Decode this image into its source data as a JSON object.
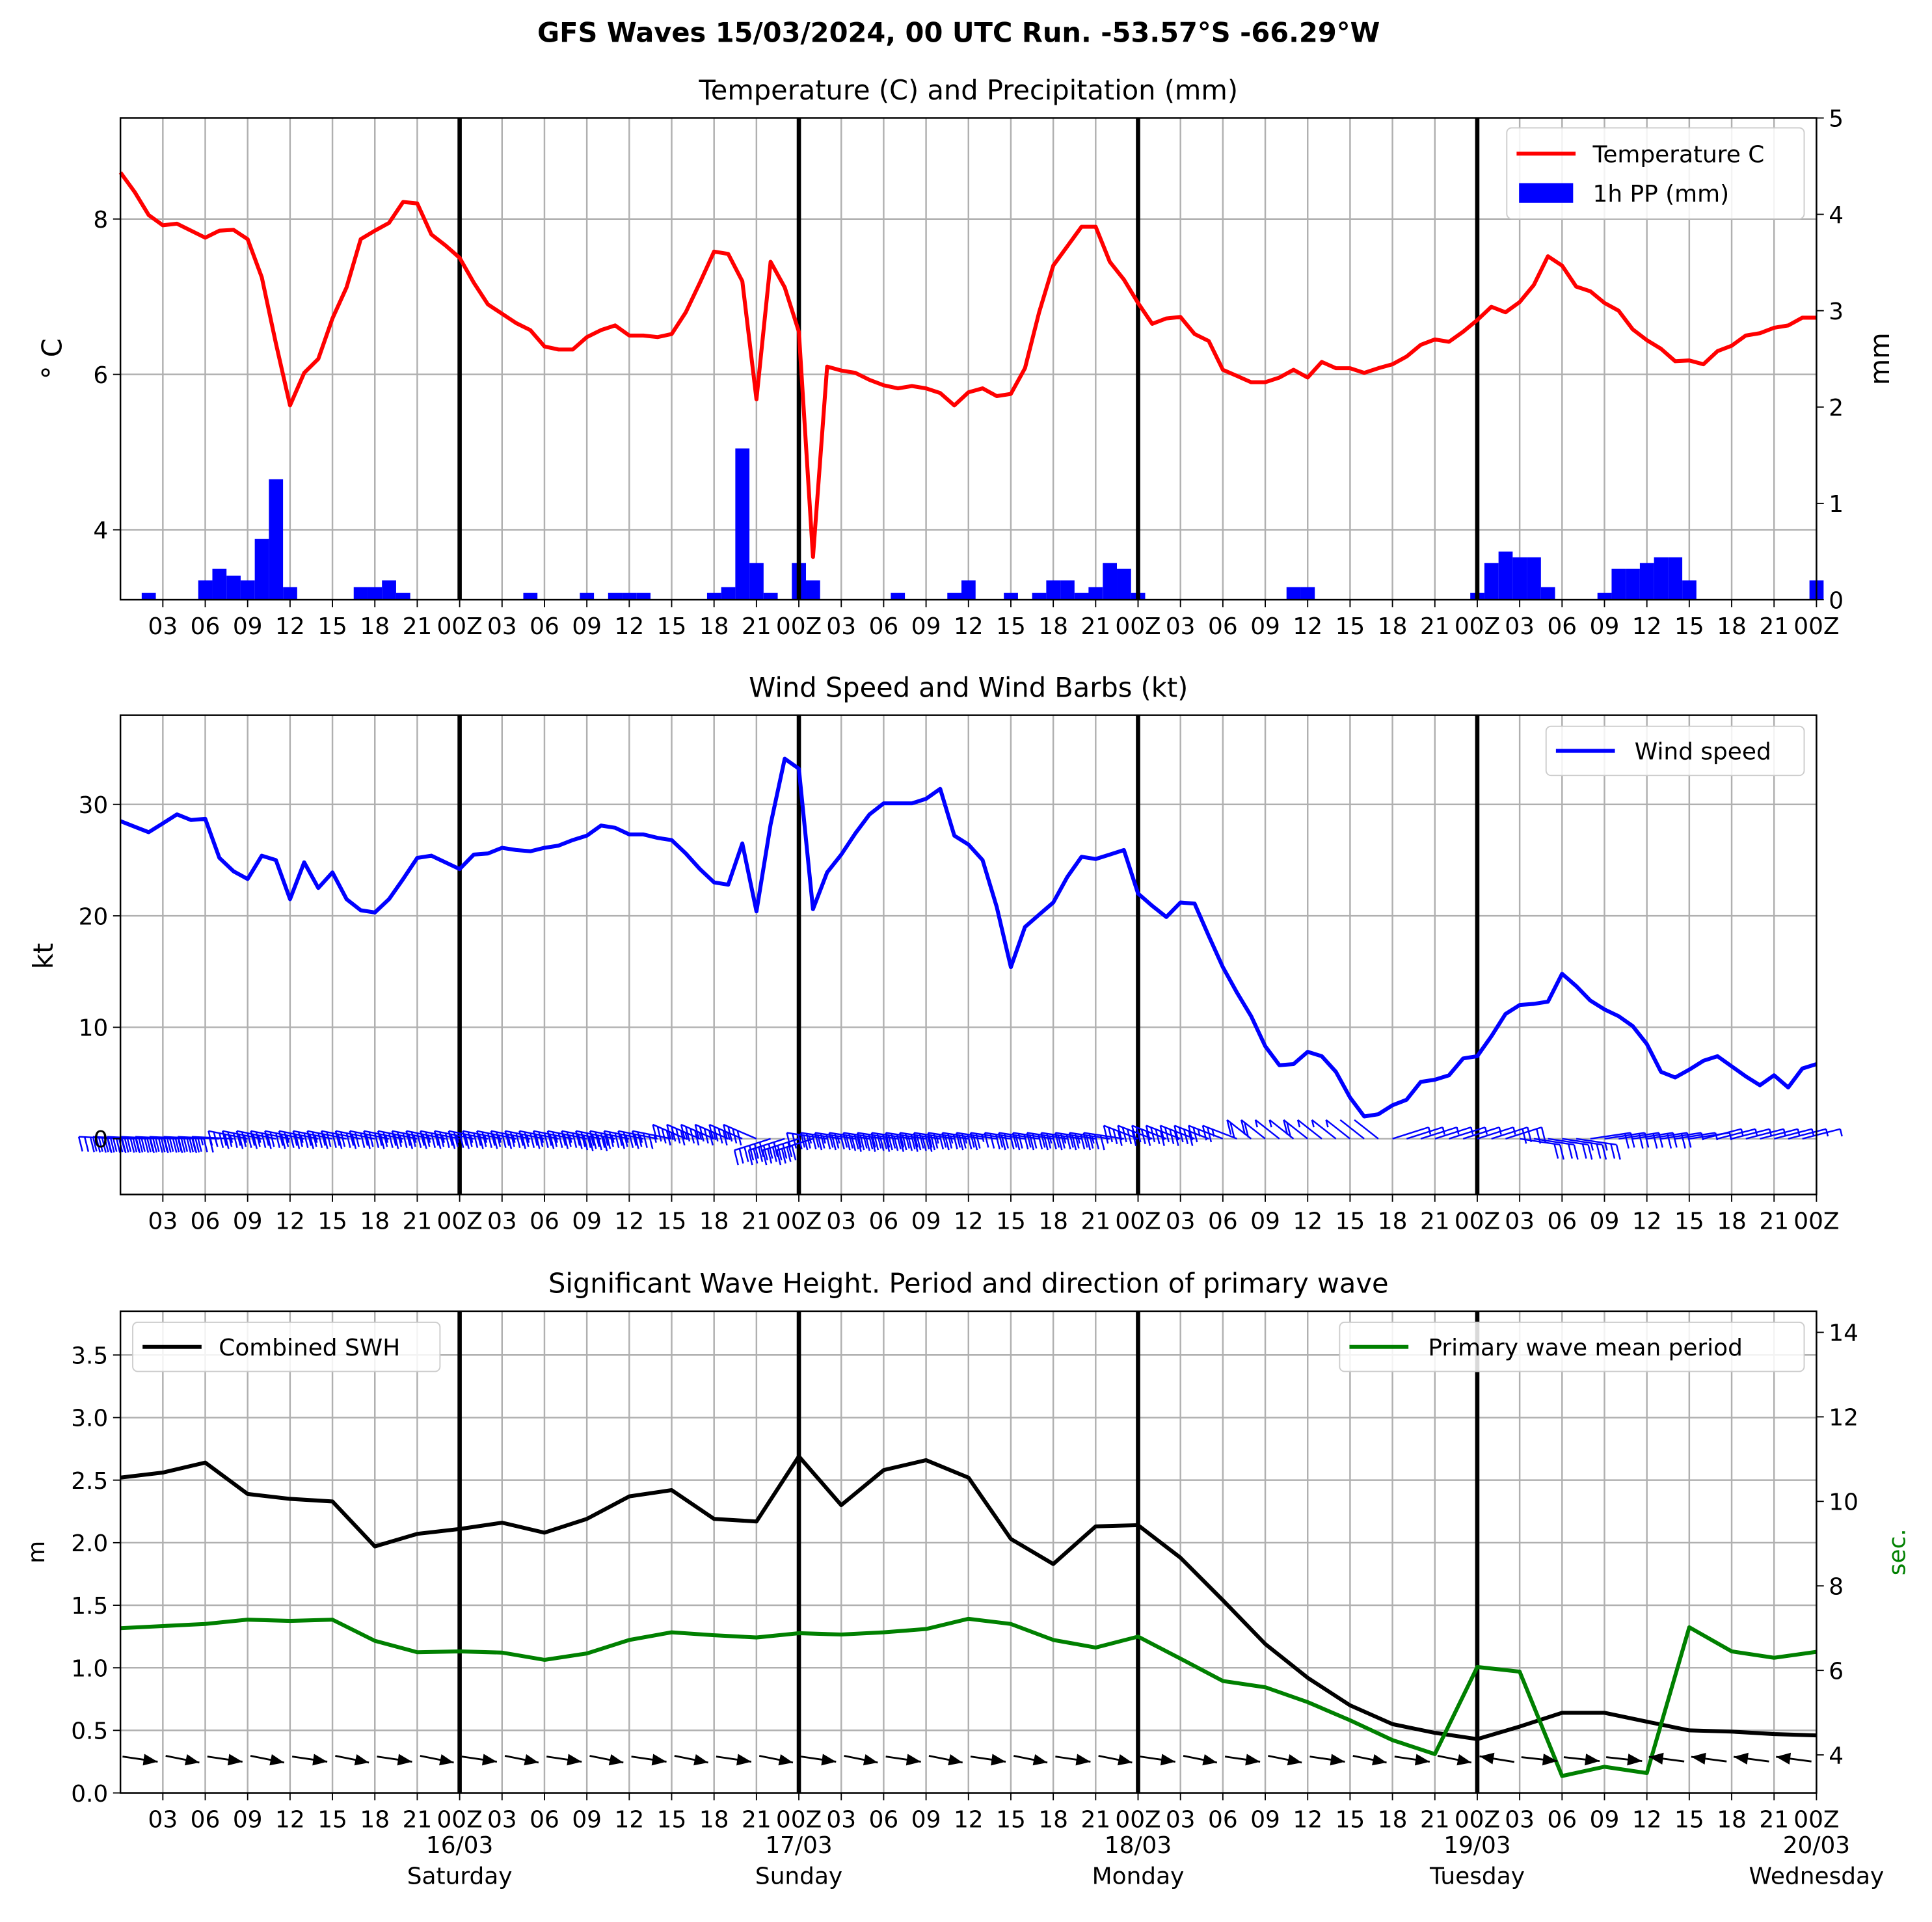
{
  "page_title": "GFS Waves 15/03/2024, 00 UTC Run. -53.57°S -66.29°W",
  "x_ticks": [
    "03",
    "06",
    "09",
    "12",
    "15",
    "18",
    "21",
    "00Z",
    "03",
    "06",
    "09",
    "12",
    "15",
    "18",
    "21",
    "00Z",
    "03",
    "06",
    "09",
    "12",
    "15",
    "18",
    "21",
    "00Z",
    "03",
    "06",
    "09",
    "12",
    "15",
    "18",
    "21",
    "00Z",
    "03",
    "06",
    "09",
    "12",
    "15",
    "18",
    "21",
    "00Z"
  ],
  "day_labels": [
    {
      "date": "16/03",
      "day": "Saturday"
    },
    {
      "date": "17/03",
      "day": "Sunday"
    },
    {
      "date": "18/03",
      "day": "Monday"
    },
    {
      "date": "19/03",
      "day": "Tuesday"
    },
    {
      "date": "20/03",
      "day": "Wednesday"
    }
  ],
  "colors": {
    "temperature": "#ff0000",
    "precip": "#0000ff",
    "wind": "#0000ff",
    "swh": "#000000",
    "period": "#008000",
    "grid": "#b0b0b0"
  },
  "chart_data": [
    {
      "type": "line",
      "title": "Temperature (C) and Precipitation (mm)",
      "ylabel": "$^\\circ$C",
      "y2label": "mm",
      "x_unit": "hours since 15/03/2024 00 UTC",
      "xlim": [
        0,
        120
      ],
      "ylim": [
        3.1,
        9.3
      ],
      "y_ticks": [
        4,
        6,
        8
      ],
      "y2lim": [
        0,
        5
      ],
      "y2_ticks": [
        0,
        1,
        2,
        3,
        4,
        5
      ],
      "legend": "top-right",
      "series": [
        {
          "name": "Temperature C",
          "axis": "left",
          "x": [
            0,
            1,
            2,
            3,
            4,
            5,
            6,
            7,
            8,
            9,
            10,
            11,
            12,
            13,
            14,
            15,
            16,
            17,
            18,
            19,
            20,
            21,
            22,
            23,
            24,
            25,
            26,
            27,
            28,
            29,
            30,
            31,
            32,
            33,
            34,
            35,
            36,
            37,
            38,
            39,
            40,
            41,
            42,
            43,
            44,
            45,
            46,
            47,
            48,
            49,
            50,
            51,
            52,
            53,
            54,
            55,
            56,
            57,
            58,
            59,
            60,
            61,
            62,
            63,
            64,
            65,
            66,
            67,
            68,
            69,
            70,
            71,
            72,
            73,
            74,
            75,
            76,
            77,
            78,
            79,
            80,
            81,
            82,
            83,
            84,
            85,
            86,
            87,
            88,
            89,
            90,
            91,
            92,
            93,
            94,
            95,
            96,
            97,
            98,
            99,
            100,
            101,
            102,
            103,
            104,
            105,
            106,
            107,
            108,
            109,
            110,
            111,
            112,
            113,
            114,
            115,
            116,
            117,
            118,
            119,
            120
          ],
          "y": [
            8.6,
            8.35,
            8.05,
            7.92,
            7.94,
            7.85,
            7.76,
            7.85,
            7.86,
            7.74,
            7.25,
            6.4,
            5.6,
            6.02,
            6.2,
            6.72,
            7.12,
            7.74,
            7.85,
            7.95,
            8.22,
            8.2,
            7.8,
            7.66,
            7.5,
            7.18,
            6.9,
            6.78,
            6.66,
            6.57,
            6.36,
            6.32,
            6.32,
            6.48,
            6.57,
            6.63,
            6.5,
            6.5,
            6.48,
            6.52,
            6.8,
            7.18,
            7.58,
            7.55,
            7.2,
            5.68,
            7.45,
            7.12,
            6.55,
            3.65,
            6.1,
            6.05,
            6.02,
            5.93,
            5.86,
            5.82,
            5.85,
            5.82,
            5.76,
            5.6,
            5.77,
            5.82,
            5.72,
            5.75,
            6.08,
            6.8,
            7.4,
            7.65,
            7.9,
            7.9,
            7.45,
            7.22,
            6.92,
            6.65,
            6.72,
            6.74,
            6.52,
            6.43,
            6.06,
            5.98,
            5.9,
            5.9,
            5.96,
            6.06,
            5.96,
            6.16,
            6.08,
            6.08,
            6.02,
            6.08,
            6.13,
            6.23,
            6.38,
            6.45,
            6.42,
            6.55,
            6.7,
            6.87,
            6.8,
            6.93,
            7.15,
            7.52,
            7.4,
            7.13,
            7.07,
            6.92,
            6.82,
            6.58,
            6.44,
            6.33,
            6.17,
            6.18,
            6.13,
            6.3,
            6.37,
            6.5,
            6.53,
            6.6,
            6.63,
            6.73,
            6.73
          ]
        },
        {
          "name": "1h PP (mm)",
          "axis": "right",
          "kind": "bar",
          "x": [
            2,
            6,
            7,
            8,
            9,
            10,
            11,
            12,
            17,
            18,
            19,
            20,
            29,
            33,
            35,
            36,
            37,
            42,
            43,
            44,
            45,
            46,
            48,
            49,
            55,
            59,
            60,
            63,
            65,
            66,
            67,
            68,
            69,
            70,
            71,
            72,
            83,
            84,
            96,
            97,
            98,
            99,
            100,
            101,
            105,
            106,
            107,
            108,
            109,
            110,
            111,
            112,
            120
          ],
          "y": [
            0.07,
            0.2,
            0.32,
            0.25,
            0.2,
            0.63,
            1.25,
            0.13,
            0.13,
            0.13,
            0.2,
            0.07,
            0.07,
            0.07,
            0.07,
            0.07,
            0.07,
            0.07,
            0.13,
            1.57,
            0.38,
            0.07,
            0.38,
            0.2,
            0.07,
            0.07,
            0.2,
            0.07,
            0.07,
            0.2,
            0.2,
            0.07,
            0.13,
            0.38,
            0.32,
            0.07,
            0.13,
            0.13,
            0.07,
            0.38,
            0.5,
            0.44,
            0.44,
            0.13,
            0.07,
            0.32,
            0.32,
            0.38,
            0.44,
            0.44,
            0.2,
            0.0,
            0.2
          ]
        }
      ]
    },
    {
      "type": "line",
      "title": "Wind Speed and Wind Barbs (kt)",
      "ylabel": "kt",
      "x_unit": "hours since 15/03/2024 00 UTC",
      "xlim": [
        0,
        120
      ],
      "ylim": [
        -5,
        38
      ],
      "y_ticks": [
        0,
        10,
        20,
        30
      ],
      "legend": "top-right",
      "series": [
        {
          "name": "Wind speed",
          "x": [
            0,
            2,
            3,
            4,
            5,
            6,
            7,
            8,
            9,
            10,
            11,
            12,
            13,
            14,
            15,
            16,
            17,
            18,
            19,
            20,
            21,
            22,
            24,
            25,
            26,
            27,
            28,
            29,
            30,
            31,
            32,
            33,
            34,
            35,
            36,
            37,
            38,
            39,
            40,
            41,
            42,
            43,
            44,
            45,
            46,
            47,
            48,
            49,
            50,
            51,
            52,
            53,
            54,
            55,
            56,
            57,
            58,
            59,
            60,
            61,
            62,
            63,
            64,
            65,
            66,
            67,
            68,
            69,
            70,
            71,
            72,
            73,
            74,
            75,
            76,
            77,
            78,
            79,
            80,
            81,
            82,
            83,
            84,
            85,
            86,
            87,
            88,
            89,
            90,
            91,
            92,
            93,
            94,
            95,
            96,
            97,
            98,
            99,
            100,
            101,
            102,
            103,
            104,
            105,
            106,
            107,
            108,
            109,
            110,
            111,
            112,
            113,
            114,
            115,
            116,
            117,
            118,
            119,
            120
          ],
          "y": [
            28.5,
            27.5,
            28.3,
            29.1,
            28.6,
            28.7,
            25.2,
            24.0,
            23.3,
            25.4,
            25.0,
            21.5,
            24.8,
            22.5,
            23.9,
            21.5,
            20.5,
            20.3,
            21.5,
            23.3,
            25.2,
            25.4,
            24.2,
            25.5,
            25.6,
            26.1,
            25.9,
            25.8,
            26.1,
            26.3,
            26.8,
            27.2,
            28.1,
            27.9,
            27.3,
            27.3,
            27.0,
            26.8,
            25.6,
            24.2,
            23.0,
            22.8,
            26.5,
            20.4,
            28.2,
            34.1,
            33.2,
            20.6,
            23.9,
            25.5,
            27.4,
            29.1,
            30.1,
            30.1,
            30.1,
            30.5,
            31.4,
            27.2,
            26.4,
            25.0,
            20.8,
            15.4,
            19.0,
            20.1,
            21.2,
            23.5,
            25.3,
            25.1,
            25.5,
            25.9,
            22.0,
            20.9,
            19.9,
            21.2,
            21.1,
            18.2,
            15.4,
            13.1,
            11.0,
            8.3,
            6.6,
            6.7,
            7.8,
            7.4,
            6.0,
            3.7,
            2.0,
            2.2,
            3.0,
            3.5,
            5.1,
            5.3,
            5.7,
            7.2,
            7.4,
            9.2,
            11.2,
            12.0,
            12.1,
            12.3,
            14.8,
            13.7,
            12.4,
            11.6,
            11.0,
            10.1,
            8.5,
            6.0,
            5.5,
            6.2,
            7.0,
            7.4,
            6.5,
            5.6,
            4.8,
            5.7,
            4.6,
            6.3,
            6.7
          ]
        }
      ],
      "barb_directions": {
        "0-24": "W",
        "24-48": "W",
        "48-72": "WSW",
        "72-96": "SW to NE",
        "96-120": "NW to NE"
      }
    },
    {
      "type": "line",
      "title": "Significant Wave Height. Period and direction of primary wave",
      "ylabel": "m",
      "y2label": "sec.",
      "x_unit": "hours since 15/03/2024 00 UTC",
      "xlim": [
        0,
        120
      ],
      "ylim": [
        0,
        3.85
      ],
      "y_ticks": [
        0.0,
        0.5,
        1.0,
        1.5,
        2.0,
        2.5,
        3.0,
        3.5
      ],
      "y2lim": [
        3.1,
        14.5
      ],
      "y2_ticks": [
        4,
        6,
        8,
        10,
        12,
        14
      ],
      "legend": "top-left / top-right",
      "series": [
        {
          "name": "Combined SWH",
          "axis": "left",
          "x": [
            0,
            3,
            6,
            9,
            12,
            15,
            18,
            21,
            24,
            27,
            30,
            33,
            36,
            39,
            42,
            45,
            48,
            51,
            54,
            57,
            60,
            63,
            66,
            69,
            72,
            75,
            78,
            81,
            84,
            87,
            90,
            93,
            96,
            99,
            102,
            105,
            108,
            111,
            114,
            117,
            120
          ],
          "y": [
            2.52,
            2.56,
            2.64,
            2.39,
            2.35,
            2.33,
            1.97,
            2.07,
            2.11,
            2.16,
            2.08,
            2.19,
            2.37,
            2.42,
            2.19,
            2.17,
            2.69,
            2.3,
            2.58,
            2.66,
            2.52,
            2.03,
            1.83,
            2.13,
            2.14,
            1.88,
            1.54,
            1.19,
            0.92,
            0.7,
            0.55,
            0.48,
            0.43,
            0.53,
            0.64,
            0.64,
            0.57,
            0.5,
            0.49,
            0.47,
            0.46
          ]
        },
        {
          "name": "Primary wave mean period",
          "axis": "right",
          "x": [
            0,
            3,
            6,
            9,
            12,
            15,
            18,
            21,
            24,
            27,
            30,
            33,
            36,
            39,
            42,
            45,
            48,
            51,
            54,
            57,
            60,
            63,
            66,
            69,
            72,
            75,
            78,
            81,
            84,
            87,
            90,
            93,
            96,
            99,
            102,
            105,
            108,
            111,
            114,
            117,
            120
          ],
          "y": [
            7.0,
            7.05,
            7.1,
            7.2,
            7.17,
            7.2,
            6.7,
            6.43,
            6.45,
            6.42,
            6.25,
            6.4,
            6.72,
            6.9,
            6.83,
            6.78,
            6.88,
            6.85,
            6.9,
            6.98,
            7.22,
            7.1,
            6.72,
            6.54,
            6.8,
            6.28,
            5.75,
            5.6,
            5.25,
            4.82,
            4.35,
            4.02,
            6.08,
            5.97,
            3.5,
            3.72,
            3.57,
            7.02,
            6.45,
            6.3,
            6.44
          ]
        }
      ],
      "arrow_directions": {
        "0-93": "toward ESE/SE",
        "96-120": "mixed, toward W/NW and ESE"
      }
    }
  ]
}
